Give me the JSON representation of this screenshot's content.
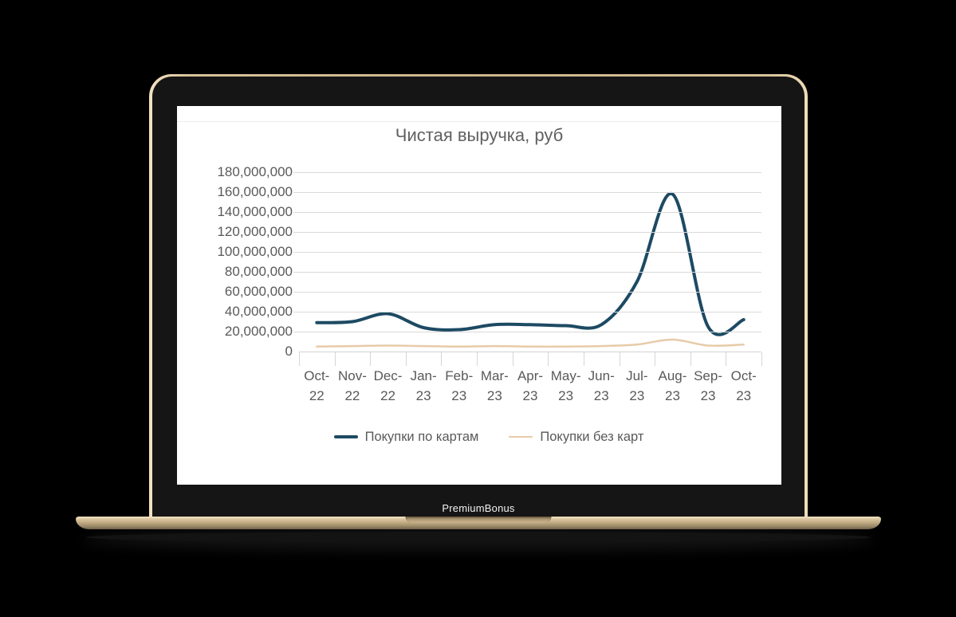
{
  "device": {
    "brand_label": "PremiumBonus"
  },
  "chart_data": {
    "type": "line",
    "title": "Чистая выручка, руб",
    "categories": [
      "Oct-22",
      "Nov-22",
      "Dec-22",
      "Jan-23",
      "Feb-23",
      "Mar-23",
      "Apr-23",
      "May-23",
      "Jun-23",
      "Jul-23",
      "Aug-23",
      "Sep-23",
      "Oct-23"
    ],
    "series": [
      {
        "name": "Покупки по картам",
        "color": "#1d4a63",
        "line_width": 4,
        "values": [
          29000000,
          30000000,
          38000000,
          24000000,
          22000000,
          27000000,
          27000000,
          26000000,
          27000000,
          70000000,
          158000000,
          25000000,
          32000000
        ]
      },
      {
        "name": "Покупки без карт",
        "color": "#e7cba9",
        "line_width": 2.5,
        "values": [
          5000000,
          5500000,
          6000000,
          5500000,
          5000000,
          5500000,
          5000000,
          5000000,
          5500000,
          7000000,
          12000000,
          6000000,
          7000000
        ]
      }
    ],
    "ylim": [
      0,
      180000000
    ],
    "ytick_step": 20000000,
    "ytick_labels": [
      "180,000,000",
      "160,000,000",
      "140,000,000",
      "120,000,000",
      "100,000,000",
      "80,000,000",
      "60,000,000",
      "40,000,000",
      "20,000,000",
      "0"
    ],
    "grid": true,
    "smooth": true,
    "legend_position": "bottom"
  },
  "colors": {
    "grid": "#dadada",
    "axis_text": "#595959",
    "title_text": "#616161",
    "laptop_gold": "#cdb58c",
    "bezel": "#151515"
  }
}
